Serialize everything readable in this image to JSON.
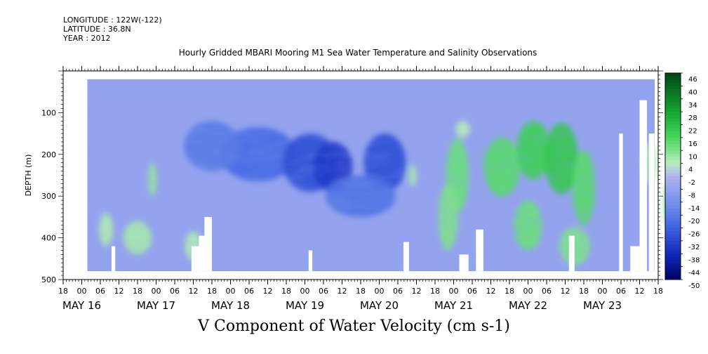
{
  "header": {
    "longitude": "LONGITUDE : 122W(-122)",
    "latitude": "LATITUDE : 36.8N",
    "year": "YEAR : 2012",
    "title": "Hourly Gridded MBARI Mooring M1 Sea Water Temperature and Salinity Observations"
  },
  "footer": {
    "title": "V Component of Water Velocity (cm s-1)"
  },
  "colors": {
    "negative_max": "#000080",
    "neutral": "#a9b6f2",
    "positive_max": "#006400",
    "missing": "#ffffff"
  },
  "chart_data": {
    "type": "heatmap",
    "title": "Hourly Gridded MBARI Mooring M1 Sea Water Temperature and Salinity Observations",
    "xlabel": "",
    "ylabel": "DEPTH (m)",
    "variable": "V Component of Water Velocity (cm s-1)",
    "x_hour_ticks": [
      "18",
      "00",
      "06",
      "12",
      "18",
      "00",
      "06",
      "12",
      "18",
      "00",
      "06",
      "12",
      "18",
      "00",
      "06",
      "12",
      "18",
      "00",
      "06",
      "12",
      "18",
      "00",
      "06",
      "12",
      "18",
      "00",
      "06",
      "12",
      "18",
      "00",
      "06",
      "12",
      "18"
    ],
    "x_date_labels": [
      "MAY 16",
      "MAY 17",
      "MAY 18",
      "MAY 19",
      "MAY 20",
      "MAY 21",
      "MAY 22",
      "MAY 23"
    ],
    "y_ticks": [
      100,
      200,
      300,
      400,
      500
    ],
    "ylim": [
      500,
      0
    ],
    "colorbar_ticks": [
      46,
      40,
      34,
      28,
      22,
      16,
      10,
      4,
      -2,
      -8,
      -14,
      -20,
      -26,
      -32,
      -38,
      -44,
      -50
    ],
    "colorbar_range": [
      -50,
      46
    ],
    "data_depth_range": [
      20,
      480
    ],
    "features": [
      {
        "period": "May 18 - May 20",
        "depth": "150-300",
        "v_approx": -26
      },
      {
        "period": "May 20 18h - May 22 24h",
        "depth": "150-480",
        "v_approx": 16
      },
      {
        "period": "May 23",
        "depth": "100-250",
        "v_approx": 8
      }
    ]
  }
}
